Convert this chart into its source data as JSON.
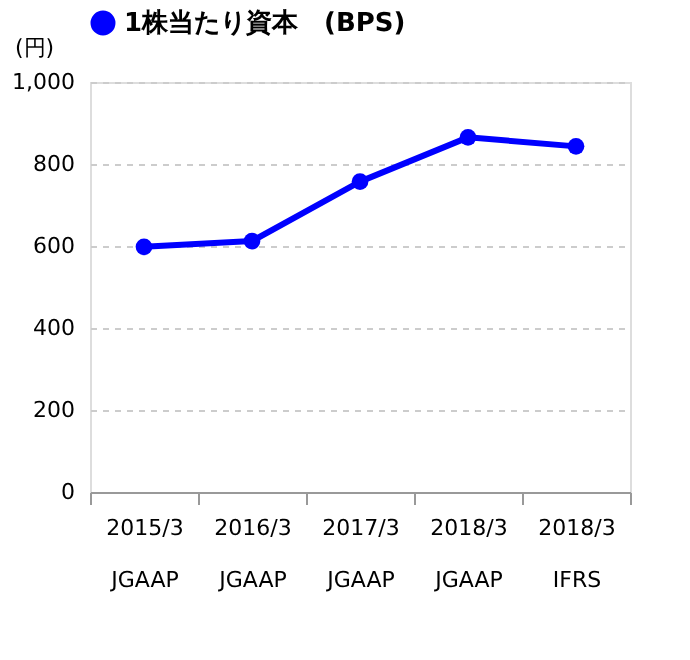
{
  "chart_data": {
    "type": "line",
    "categories": [
      "2015/3\nJGAAP",
      "2016/3\nJGAAP",
      "2017/3\nJGAAP",
      "2018/3\nJGAAP",
      "2018/3\nIFRS"
    ],
    "series": [
      {
        "name": "1株当たり資本　(BPS)",
        "color": "#0000ff",
        "values": [
          598,
          612,
          757,
          865,
          843
        ]
      }
    ],
    "ylabel": "(円)",
    "ylim": [
      0,
      1000
    ],
    "yticks": [
      0,
      200,
      400,
      600,
      {
        "value": 800,
        "label": "800"
      },
      {
        "value": 1000,
        "label": "1,000"
      }
    ],
    "grid": "y",
    "legend": "top",
    "marker": "circle",
    "line_style": "solid"
  }
}
